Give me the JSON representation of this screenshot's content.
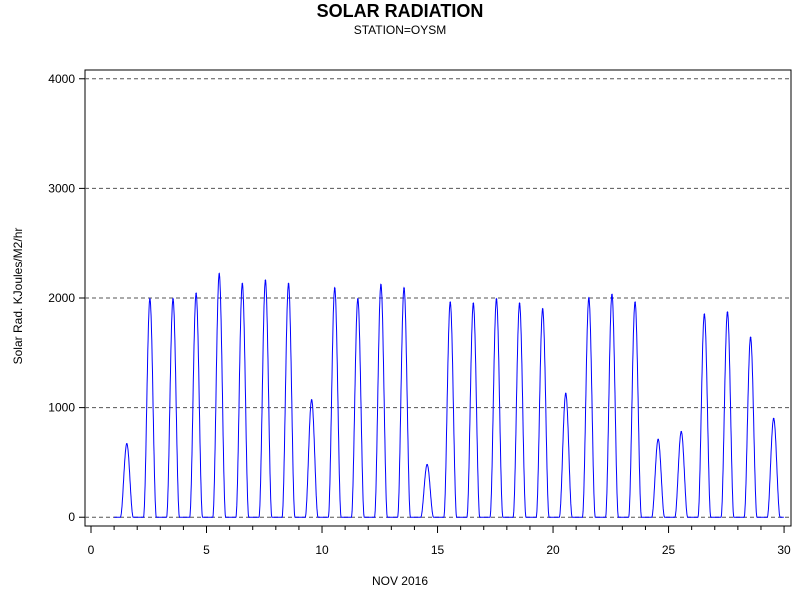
{
  "chart_data": {
    "type": "line",
    "title": "SOLAR RADIATION",
    "subtitle": "STATION=OYSM",
    "xlabel": "NOV 2016",
    "ylabel": "Solar Rad. KJoules/M2/hr",
    "xlim": [
      0,
      30.3
    ],
    "ylim": [
      -80,
      4080
    ],
    "x_ticks": [
      0,
      5,
      10,
      15,
      20,
      25,
      30
    ],
    "y_ticks": [
      0,
      1000,
      2000,
      3000,
      4000
    ],
    "grid": "horizontal-dashed",
    "series": [
      {
        "color": "#0000ff",
        "daily_peaks": [
          {
            "day": 1,
            "x": 1.55,
            "peak": 670
          },
          {
            "day": 2,
            "x": 2.55,
            "peak": 1990
          },
          {
            "day": 3,
            "x": 3.55,
            "peak": 1990
          },
          {
            "day": 4,
            "x": 4.55,
            "peak": 2040
          },
          {
            "day": 5,
            "x": 5.55,
            "peak": 2220
          },
          {
            "day": 6,
            "x": 6.55,
            "peak": 2130
          },
          {
            "day": 7,
            "x": 7.55,
            "peak": 2160
          },
          {
            "day": 8,
            "x": 8.55,
            "peak": 2130
          },
          {
            "day": 9,
            "x": 9.55,
            "peak": 1070
          },
          {
            "day": 10,
            "x": 10.55,
            "peak": 2090
          },
          {
            "day": 11,
            "x": 11.55,
            "peak": 1990
          },
          {
            "day": 12,
            "x": 12.55,
            "peak": 2120
          },
          {
            "day": 13,
            "x": 13.55,
            "peak": 2090
          },
          {
            "day": 14,
            "x": 14.55,
            "peak": 480
          },
          {
            "day": 15,
            "x": 15.55,
            "peak": 1960
          },
          {
            "day": 16,
            "x": 16.55,
            "peak": 1950
          },
          {
            "day": 17,
            "x": 17.55,
            "peak": 1990
          },
          {
            "day": 18,
            "x": 18.55,
            "peak": 1950
          },
          {
            "day": 19,
            "x": 19.55,
            "peak": 1900
          },
          {
            "day": 20,
            "x": 20.55,
            "peak": 1130
          },
          {
            "day": 21,
            "x": 21.55,
            "peak": 2000
          },
          {
            "day": 22,
            "x": 22.55,
            "peak": 2030
          },
          {
            "day": 23,
            "x": 23.55,
            "peak": 1960
          },
          {
            "day": 24,
            "x": 24.55,
            "peak": 710
          },
          {
            "day": 25,
            "x": 25.55,
            "peak": 780
          },
          {
            "day": 26,
            "x": 26.55,
            "peak": 1850
          },
          {
            "day": 27,
            "x": 27.55,
            "peak": 1870
          },
          {
            "day": 28,
            "x": 28.55,
            "peak": 1640
          },
          {
            "day": 29,
            "x": 29.55,
            "peak": 900
          }
        ]
      }
    ]
  }
}
